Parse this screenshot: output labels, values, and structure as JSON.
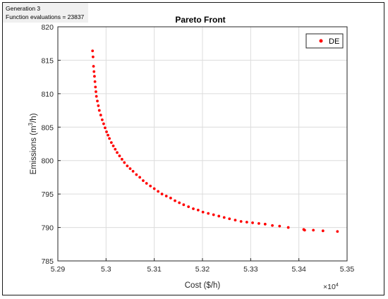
{
  "status": {
    "generation": "Generation 3",
    "evaluations": "Function evaluations = 23837"
  },
  "chart_data": {
    "type": "scatter",
    "title": "Pareto Front",
    "xlabel": "Cost ($/h)",
    "ylabel_prefix": "Emissions (m",
    "ylabel_sup": "3",
    "ylabel_suffix": "/h)",
    "x_multiplier": "×10",
    "x_multiplier_exp": "4",
    "xlim": [
      5.29,
      5.35
    ],
    "ylim": [
      785,
      820
    ],
    "xticks": [
      "5.29",
      "5.3",
      "5.31",
      "5.32",
      "5.33",
      "5.34",
      "5.35"
    ],
    "yticks": [
      "785",
      "790",
      "795",
      "800",
      "805",
      "810",
      "815",
      "820"
    ],
    "grid": true,
    "legend_position": "top-right",
    "color": "#ff0000",
    "series": [
      {
        "name": "DE",
        "x": [
          5.2972,
          5.2973,
          5.2974,
          5.2975,
          5.2976,
          5.2977,
          5.2978,
          5.2979,
          5.298,
          5.2982,
          5.2984,
          5.2986,
          5.2989,
          5.2992,
          5.2995,
          5.2998,
          5.3001,
          5.3004,
          5.3007,
          5.3011,
          5.3015,
          5.3019,
          5.3023,
          5.3028,
          5.3033,
          5.3038,
          5.3044,
          5.305,
          5.3056,
          5.3063,
          5.307,
          5.3077,
          5.3084,
          5.3092,
          5.31,
          5.3108,
          5.3116,
          5.3125,
          5.3134,
          5.3143,
          5.3152,
          5.3161,
          5.3171,
          5.3181,
          5.3191,
          5.3201,
          5.3212,
          5.3223,
          5.3234,
          5.3245,
          5.3256,
          5.3268,
          5.328,
          5.3292,
          5.3304,
          5.3317,
          5.333,
          5.3345,
          5.336,
          5.3378,
          5.341,
          5.3412,
          5.343,
          5.345,
          5.348
        ],
        "y": [
          816.4,
          815.5,
          814.1,
          813.3,
          812.6,
          811.8,
          811.0,
          810.3,
          809.6,
          808.9,
          808.2,
          807.5,
          806.8,
          806.1,
          805.5,
          804.9,
          804.3,
          803.8,
          803.3,
          802.7,
          802.2,
          801.7,
          801.2,
          800.7,
          800.2,
          799.7,
          799.2,
          798.8,
          798.4,
          797.9,
          797.5,
          797.0,
          796.6,
          796.2,
          795.8,
          795.4,
          795.0,
          794.7,
          794.4,
          794.0,
          793.7,
          793.4,
          793.1,
          792.8,
          792.6,
          792.3,
          792.1,
          791.9,
          791.7,
          791.5,
          791.3,
          791.1,
          790.9,
          790.8,
          790.7,
          790.6,
          790.5,
          790.3,
          790.2,
          790.0,
          789.7,
          789.6,
          789.6,
          789.5,
          789.4
        ]
      }
    ]
  }
}
